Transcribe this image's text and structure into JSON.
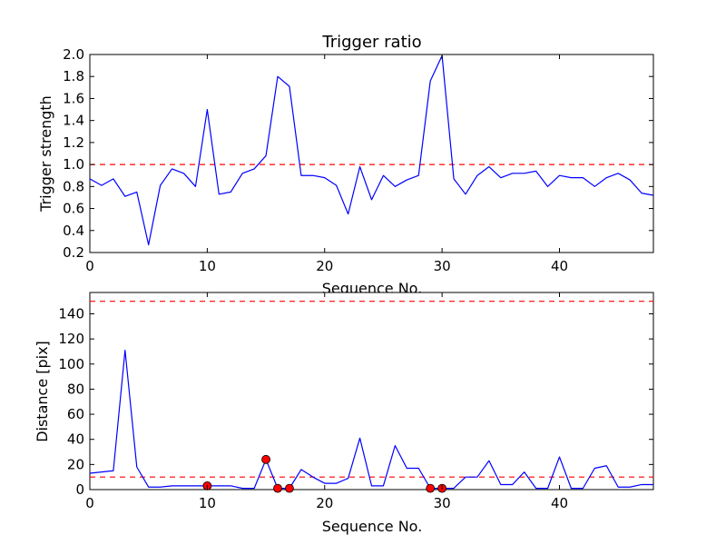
{
  "chart_data": [
    {
      "type": "line",
      "title": "Trigger ratio",
      "xlabel": "Sequence No.",
      "ylabel": "Trigger strength",
      "xlim": [
        0,
        48
      ],
      "ylim": [
        0.2,
        2.0
      ],
      "x_ticks": [
        0,
        10,
        20,
        30,
        40
      ],
      "y_ticks": [
        0.2,
        0.4,
        0.6,
        0.8,
        1.0,
        1.2,
        1.4,
        1.6,
        1.8,
        2.0
      ],
      "x_tick_labels": [
        "0",
        "10",
        "20",
        "30",
        "40"
      ],
      "y_tick_labels": [
        "0.2",
        "0.4",
        "0.6",
        "0.8",
        "1.0",
        "1.2",
        "1.4",
        "1.6",
        "1.8",
        "2.0"
      ],
      "grid": false,
      "series": [
        {
          "color": "#0000ff",
          "style": "solid",
          "x": [
            0,
            1,
            2,
            3,
            4,
            5,
            6,
            7,
            8,
            9,
            10,
            11,
            12,
            13,
            14,
            15,
            16,
            17,
            18,
            19,
            20,
            21,
            22,
            23,
            24,
            25,
            26,
            27,
            28,
            29,
            30,
            31,
            32,
            33,
            34,
            35,
            36,
            37,
            38,
            39,
            40,
            41,
            42,
            43,
            44,
            45,
            46,
            47,
            48
          ],
          "values": [
            0.87,
            0.81,
            0.87,
            0.71,
            0.75,
            0.27,
            0.81,
            0.96,
            0.92,
            0.8,
            1.5,
            0.73,
            0.75,
            0.92,
            0.96,
            1.08,
            1.8,
            1.71,
            0.9,
            0.9,
            0.88,
            0.81,
            0.55,
            0.98,
            0.68,
            0.9,
            0.8,
            0.86,
            0.9,
            1.76,
            1.99,
            0.87,
            0.73,
            0.9,
            0.98,
            0.88,
            0.92,
            0.92,
            0.94,
            0.8,
            0.9,
            0.88,
            0.88,
            0.8,
            0.88,
            0.92,
            0.86,
            0.74,
            0.72
          ]
        }
      ],
      "threshold_lines": [
        {
          "y": 1.0,
          "color": "#ff0000",
          "style": "dashed"
        }
      ]
    },
    {
      "type": "line",
      "title": "",
      "xlabel": "Sequence No.",
      "ylabel": "Distance [pix]",
      "xlim": [
        0,
        48
      ],
      "ylim": [
        0,
        157
      ],
      "x_ticks": [
        0,
        10,
        20,
        30,
        40
      ],
      "y_ticks": [
        0,
        20,
        40,
        60,
        80,
        100,
        120,
        140
      ],
      "x_tick_labels": [
        "0",
        "10",
        "20",
        "30",
        "40"
      ],
      "y_tick_labels": [
        "0",
        "20",
        "40",
        "60",
        "80",
        "100",
        "120",
        "140"
      ],
      "grid": false,
      "series": [
        {
          "color": "#0000ff",
          "style": "solid",
          "x": [
            0,
            1,
            2,
            3,
            4,
            5,
            6,
            7,
            8,
            9,
            10,
            11,
            12,
            13,
            14,
            15,
            16,
            17,
            18,
            19,
            20,
            21,
            22,
            23,
            24,
            25,
            26,
            27,
            28,
            29,
            30,
            31,
            32,
            33,
            34,
            35,
            36,
            37,
            38,
            39,
            40,
            41,
            42,
            43,
            44,
            45,
            46,
            47,
            48
          ],
          "values": [
            13,
            14,
            15,
            111,
            18,
            2,
            2,
            3,
            3,
            3,
            3,
            3,
            3,
            1,
            1,
            24,
            1,
            1,
            16,
            10,
            5,
            5,
            9,
            41,
            3,
            3,
            35,
            17,
            17,
            1,
            1,
            1,
            10,
            10,
            23,
            4,
            4,
            14,
            1,
            1,
            26,
            1,
            1,
            17,
            19,
            2,
            2,
            4,
            4
          ]
        }
      ],
      "markers": {
        "color": "#ff0000",
        "x": [
          10,
          15,
          16,
          17,
          29,
          30
        ],
        "y": [
          3,
          24,
          1,
          1,
          1,
          1
        ]
      },
      "threshold_lines": [
        {
          "y": 150,
          "color": "#ff0000",
          "style": "dashed"
        },
        {
          "y": 10,
          "color": "#ff0000",
          "style": "dashed"
        }
      ]
    }
  ]
}
